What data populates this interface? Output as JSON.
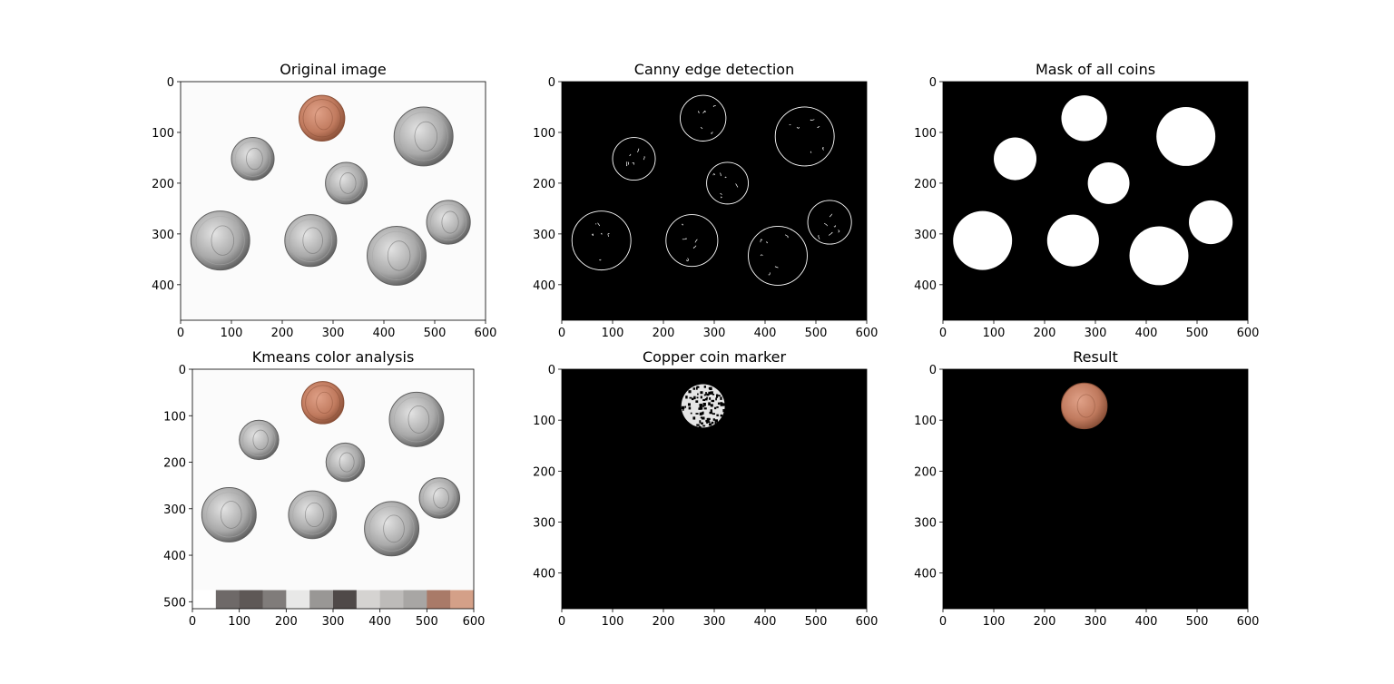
{
  "chart_data": [
    {
      "type": "image",
      "title": "Original image",
      "content": "original-coins",
      "xlim": [
        0,
        600
      ],
      "ylim": [
        470,
        0
      ],
      "xticks": [
        0,
        100,
        200,
        300,
        400,
        500,
        600
      ],
      "yticks": [
        0,
        100,
        200,
        300,
        400
      ]
    },
    {
      "type": "image",
      "title": "Canny edge detection",
      "content": "edges",
      "xlim": [
        0,
        600
      ],
      "ylim": [
        470,
        0
      ],
      "xticks": [
        0,
        100,
        200,
        300,
        400,
        500,
        600
      ],
      "yticks": [
        0,
        100,
        200,
        300,
        400
      ]
    },
    {
      "type": "image",
      "title": "Mask of all coins",
      "content": "mask",
      "xlim": [
        0,
        600
      ],
      "ylim": [
        470,
        0
      ],
      "xticks": [
        0,
        100,
        200,
        300,
        400,
        500,
        600
      ],
      "yticks": [
        0,
        100,
        200,
        300,
        400
      ]
    },
    {
      "type": "image",
      "title": "Kmeans color analysis",
      "content": "kmeans",
      "xlim": [
        0,
        600
      ],
      "ylim": [
        515,
        0
      ],
      "xticks": [
        0,
        100,
        200,
        300,
        400,
        500,
        600
      ],
      "yticks": [
        0,
        100,
        200,
        300,
        400,
        500
      ],
      "palette": {
        "y_range": [
          475,
          515
        ],
        "x_start": 50,
        "cell_width": 50,
        "colors": [
          "#6e6968",
          "#5e5856",
          "#807c7a",
          "#e8e8e7",
          "#999795",
          "#4f4948",
          "#d5d3d1",
          "#bdbbb9",
          "#a8a6a4",
          "#a97a68",
          "#d4a088"
        ]
      }
    },
    {
      "type": "image",
      "title": "Copper coin marker",
      "content": "marker",
      "xlim": [
        0,
        600
      ],
      "ylim": [
        470,
        0
      ],
      "xticks": [
        0,
        100,
        200,
        300,
        400,
        500,
        600
      ],
      "yticks": [
        0,
        100,
        200,
        300,
        400
      ]
    },
    {
      "type": "image",
      "title": "Result",
      "content": "result",
      "xlim": [
        0,
        600
      ],
      "ylim": [
        470,
        0
      ],
      "xticks": [
        0,
        100,
        200,
        300,
        400,
        500,
        600
      ],
      "yticks": [
        0,
        100,
        200,
        300,
        400
      ]
    }
  ],
  "coins": [
    {
      "kind": "penny",
      "x": 278,
      "y": 72,
      "r": 45
    },
    {
      "kind": "dime",
      "x": 142,
      "y": 152,
      "r": 42
    },
    {
      "kind": "quarter",
      "x": 478,
      "y": 108,
      "r": 58
    },
    {
      "kind": "dime",
      "x": 326,
      "y": 200,
      "r": 41
    },
    {
      "kind": "nickel",
      "x": 527,
      "y": 277,
      "r": 43
    },
    {
      "kind": "quarter",
      "x": 78,
      "y": 313,
      "r": 58
    },
    {
      "kind": "nickel",
      "x": 256,
      "y": 313,
      "r": 51
    },
    {
      "kind": "quarter",
      "x": 425,
      "y": 343,
      "r": 58
    }
  ],
  "colors": {
    "paper": "#fbfbfb",
    "silver_light": "#e3e3e3",
    "silver_mid": "#a9a9a9",
    "silver_dark": "#5f5f5f",
    "copper_light": "#e0a188",
    "copper_mid": "#c07a5e",
    "copper_dark": "#8a5038",
    "mask_fg": "#ffffff",
    "mask_bg": "#000000"
  }
}
